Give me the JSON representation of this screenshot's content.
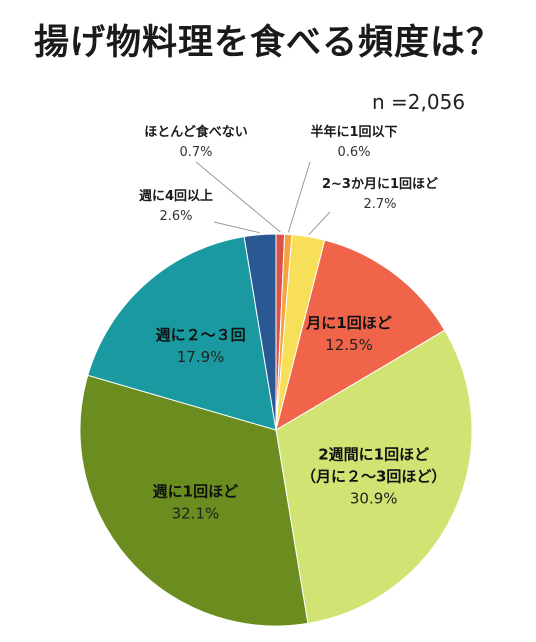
{
  "title": "揚げ物料理を食べる頻度は？",
  "sample_size": "n =2,056",
  "chart_data": {
    "type": "pie",
    "title": "揚げ物料理を食べる頻度は？",
    "n": "n =2,056",
    "start_angle_deg": 0,
    "direction": "clockwise",
    "slices": [
      {
        "label": "ほとんど食べない",
        "label_lines": [
          "ほとんど食べない"
        ],
        "value": 0.7,
        "value_text": "0.7%",
        "color": "#d9534a",
        "label_position": "outside"
      },
      {
        "label": "半年に1回以下",
        "label_lines": [
          "半年に1回以下"
        ],
        "value": 0.6,
        "value_text": "0.6%",
        "color": "#f4a340",
        "label_position": "outside"
      },
      {
        "label": "2~3か月に1回ほど",
        "label_lines": [
          "2~3か月に1回ほど"
        ],
        "value": 2.7,
        "value_text": "2.7%",
        "color": "#f7df5a",
        "label_position": "outside"
      },
      {
        "label": "月に1回ほど",
        "label_lines": [
          "月に1回ほど"
        ],
        "value": 12.5,
        "value_text": "12.5%",
        "color": "#f0644a",
        "label_position": "inside"
      },
      {
        "label": "2週間に1回ほど（月に２～3回ほど）",
        "label_lines": [
          "2週間に1回ほど",
          "（月に２～3回ほど）"
        ],
        "value": 30.9,
        "value_text": "30.9%",
        "color": "#d1e473",
        "label_position": "inside"
      },
      {
        "label": "週に1回ほど",
        "label_lines": [
          "週に1回ほど"
        ],
        "value": 32.1,
        "value_text": "32.1%",
        "color": "#6b8c1e",
        "label_position": "inside"
      },
      {
        "label": "週に２～３回",
        "label_lines": [
          "週に２～３回"
        ],
        "value": 17.9,
        "value_text": "17.9%",
        "color": "#1a9aa0",
        "label_position": "inside"
      },
      {
        "label": "週に4回以上",
        "label_lines": [
          "週に4回以上"
        ],
        "value": 2.6,
        "value_text": "2.6%",
        "color": "#2a5893",
        "label_position": "outside"
      }
    ]
  }
}
